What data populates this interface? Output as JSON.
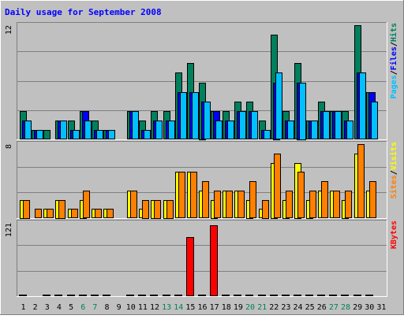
{
  "colors": {
    "background": "#c0c0c0",
    "border_light": "#ffffff",
    "border_dark": "#808080",
    "grid": "#808080",
    "title": "#0000ff",
    "hits": "#00805c",
    "files": "#0000ff",
    "pages": "#00c0ff",
    "visits": "#ffff00",
    "sites": "#ff8000",
    "kbytes": "#ff0000",
    "day_weekday": "#000000",
    "day_weekend": "#00805c"
  },
  "chart_data": {
    "type": "bar",
    "title": "Daily usage for September 2008",
    "days": [
      "1",
      "2",
      "3",
      "4",
      "5",
      "6",
      "7",
      "8",
      "9",
      "10",
      "11",
      "12",
      "13",
      "14",
      "15",
      "16",
      "17",
      "18",
      "19",
      "20",
      "21",
      "22",
      "23",
      "24",
      "25",
      "26",
      "27",
      "28",
      "29",
      "30",
      "31"
    ],
    "weekend_days": [
      "6",
      "7",
      "13",
      "14",
      "20",
      "21",
      "27",
      "28"
    ],
    "panels": [
      {
        "name": "hits-files-pages",
        "ymax_label": "12",
        "ymax": 12,
        "legend": [
          {
            "label": "Pages",
            "color_key": "pages"
          },
          {
            "label": "/",
            "color_key": "day_weekday"
          },
          {
            "label": "Files",
            "color_key": "files"
          },
          {
            "label": "/",
            "color_key": "day_weekday"
          },
          {
            "label": "Hits",
            "color_key": "hits"
          }
        ],
        "series": [
          {
            "name": "Hits",
            "color_key": "hits",
            "values": [
              3,
              1,
              1,
              2,
              2,
              3,
              2,
              1,
              0,
              3,
              2,
              3,
              3,
              7,
              8,
              6,
              3,
              3,
              4,
              4,
              2,
              11,
              3,
              8,
              2,
              4,
              3,
              3,
              12,
              5,
              0
            ]
          },
          {
            "name": "Files",
            "color_key": "files",
            "values": [
              2,
              1,
              0,
              2,
              1,
              3,
              1,
              1,
              0,
              3,
              1,
              2,
              2,
              5,
              5,
              4,
              3,
              2,
              3,
              3,
              1,
              6,
              2,
              6,
              2,
              3,
              3,
              2,
              7,
              5,
              0
            ]
          },
          {
            "name": "Pages",
            "color_key": "pages",
            "values": [
              2,
              1,
              0,
              2,
              1,
              2,
              1,
              1,
              0,
              3,
              1,
              2,
              2,
              5,
              5,
              4,
              2,
              2,
              3,
              3,
              1,
              7,
              2,
              6,
              2,
              3,
              3,
              2,
              7,
              4,
              0
            ]
          }
        ]
      },
      {
        "name": "visits-sites",
        "ymax_label": "8",
        "ymax": 8,
        "legend": [
          {
            "label": "Sites",
            "color_key": "sites"
          },
          {
            "label": "/",
            "color_key": "day_weekday"
          },
          {
            "label": "Visits",
            "color_key": "visits"
          }
        ],
        "series": [
          {
            "name": "Visits",
            "color_key": "visits",
            "values": [
              2,
              0,
              1,
              2,
              1,
              2,
              1,
              1,
              0,
              3,
              1,
              2,
              2,
              5,
              5,
              3,
              2,
              3,
              3,
              2,
              1,
              6,
              2,
              6,
              2,
              3,
              3,
              2,
              7,
              3,
              0
            ]
          },
          {
            "name": "Sites",
            "color_key": "sites",
            "values": [
              2,
              1,
              1,
              2,
              1,
              3,
              1,
              1,
              0,
              3,
              2,
              2,
              2,
              5,
              5,
              4,
              3,
              3,
              3,
              4,
              2,
              7,
              3,
              5,
              3,
              4,
              3,
              3,
              8,
              4,
              0
            ]
          }
        ]
      },
      {
        "name": "kbytes",
        "ymax_label": "121",
        "ymax": 121,
        "legend": [
          {
            "label": "KBytes",
            "color_key": "kbytes"
          }
        ],
        "series": [
          {
            "name": "KBytes",
            "color_key": "kbytes",
            "values": [
              2,
              0,
              2,
              2,
              2,
              2,
              2,
              2,
              0,
              2,
              2,
              2,
              2,
              2,
              97,
              2,
              117,
              2,
              2,
              2,
              2,
              2,
              2,
              2,
              2,
              2,
              2,
              2,
              3,
              2,
              0
            ]
          }
        ]
      }
    ]
  }
}
